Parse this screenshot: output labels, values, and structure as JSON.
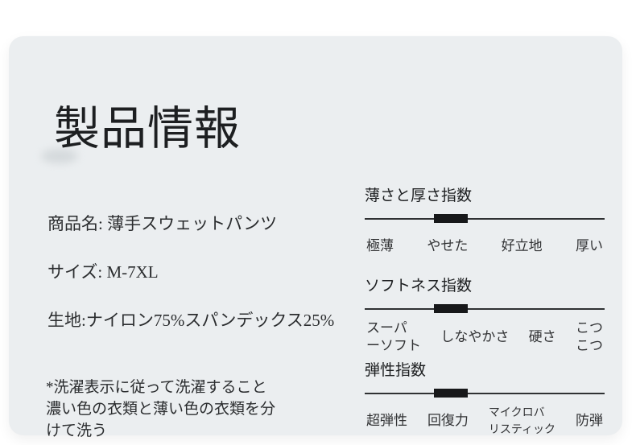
{
  "card": {
    "title": "製品情報"
  },
  "product": {
    "name_line": "商品名: 薄手スウェットパンツ",
    "size_line": "サイズ: M-7XL",
    "fabric_line": "生地:ナイロン75%スパンデックス25%",
    "washing_note": "*洗濯表示に従って洗濯すること\n濃い色の衣類と薄い色の衣類を分\nけて洗う"
  },
  "scales": [
    {
      "title": "薄さと厚さ指数",
      "labels": [
        "極薄",
        "やせた",
        "好立地",
        "厚い"
      ],
      "marker_left_pct": 28.9,
      "marker_width_pct": 14.1
    },
    {
      "title": "ソフトネス指数",
      "labels": [
        "スーパ\nーソフト",
        "しなやかさ",
        "硬さ",
        "こつ\nこつ"
      ],
      "marker_left_pct": 28.9,
      "marker_width_pct": 14.1
    },
    {
      "title": "弾性指数",
      "labels": [
        "超弾性",
        "回復力",
        "マイクロバ\nリスティック",
        "防弾"
      ],
      "marker_left_pct": 28.9,
      "marker_width_pct": 14.1
    }
  ],
  "colors": {
    "page_bg": "#ffffff",
    "card_bg": "#ebeef0",
    "text_primary": "#1d1f21",
    "text_secondary": "#2b2d2f",
    "scale_line": "#2f3133",
    "marker": "#17181a"
  }
}
